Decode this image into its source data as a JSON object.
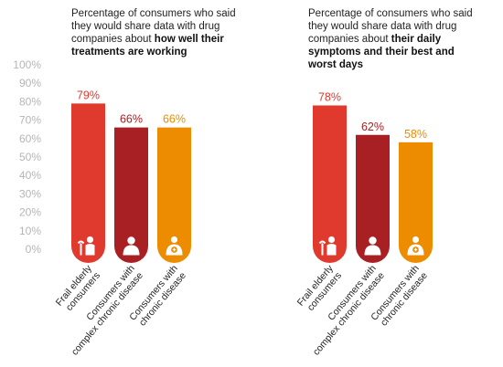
{
  "chart_data": [
    {
      "type": "bar",
      "title_parts": [
        "Percentage of consumers who said they would share data with drug companies about ",
        "how well their treatments are working"
      ],
      "categories": [
        "Frail elderly consumers",
        "Consumers with complex chronic disease",
        "Consumers with chronic disease"
      ],
      "category_lines": [
        [
          "Frail elderly",
          "consumers"
        ],
        [
          "Consumers with",
          "complex chronic disease"
        ],
        [
          "Consumers with",
          "chronic disease"
        ]
      ],
      "values": [
        79,
        66,
        66
      ],
      "value_labels": [
        "79%",
        "66%",
        "66%"
      ],
      "ylim": [
        0,
        100
      ],
      "yticks": [
        "0%",
        "10%",
        "20%",
        "30%",
        "40%",
        "50%",
        "60%",
        "70%",
        "80%",
        "90%",
        "100%"
      ],
      "colors": [
        "#e03a2e",
        "#a81f24",
        "#ee8c00"
      ],
      "icons": [
        "frail-elderly-icon",
        "complex-chronic-icon",
        "chronic-icon"
      ]
    },
    {
      "type": "bar",
      "title_parts": [
        "Percentage of consumers who said they would share data with drug companies about ",
        "their daily symptoms and their best and worst days"
      ],
      "categories": [
        "Frail elderly consumers",
        "Consumers with complex chronic disease",
        "Consumers with chronic disease"
      ],
      "category_lines": [
        [
          "Frail elderly",
          "consumers"
        ],
        [
          "Consumers with",
          "complex chronic disease"
        ],
        [
          "Consumers with",
          "chronic disease"
        ]
      ],
      "values": [
        78,
        62,
        58
      ],
      "value_labels": [
        "78%",
        "62%",
        "58%"
      ],
      "ylim": [
        0,
        100
      ],
      "colors": [
        "#e03a2e",
        "#a81f24",
        "#ee8c00"
      ],
      "icons": [
        "frail-elderly-icon",
        "complex-chronic-icon",
        "chronic-icon"
      ]
    }
  ]
}
